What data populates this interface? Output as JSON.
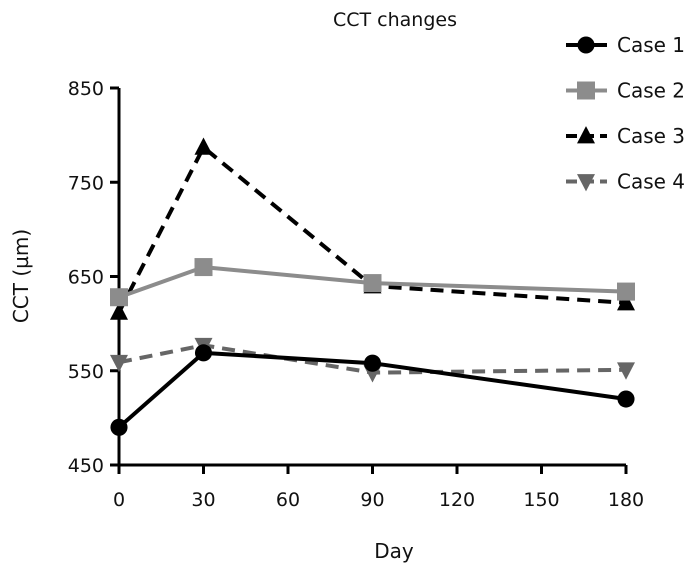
{
  "chart_data": {
    "type": "line",
    "title": "CCT changes",
    "xlabel": "Day",
    "ylabel": "CCT (µm)",
    "xlim": [
      0,
      180
    ],
    "ylim": [
      450,
      850
    ],
    "xticks": [
      0,
      30,
      60,
      90,
      120,
      150,
      180
    ],
    "yticks": [
      450,
      550,
      650,
      750,
      850
    ],
    "legend_position": "top-right",
    "series": [
      {
        "name": "Case 1",
        "color": "#000000",
        "marker": "circle",
        "dash": "solid",
        "x": [
          0,
          30,
          90,
          180
        ],
        "values": [
          490,
          569,
          558,
          520
        ]
      },
      {
        "name": "Case 2",
        "color": "#8c8c8c",
        "marker": "square",
        "dash": "solid",
        "x": [
          0,
          30,
          90,
          180
        ],
        "values": [
          628,
          660,
          643,
          634
        ]
      },
      {
        "name": "Case 3",
        "color": "#000000",
        "marker": "triangle-up",
        "dash": "dashed",
        "x": [
          0,
          30,
          90,
          180
        ],
        "values": [
          612,
          787,
          640,
          622
        ]
      },
      {
        "name": "Case 4",
        "color": "#666666",
        "marker": "triangle-down",
        "dash": "dashed",
        "x": [
          0,
          30,
          90,
          180
        ],
        "values": [
          559,
          577,
          548,
          551
        ]
      }
    ]
  }
}
